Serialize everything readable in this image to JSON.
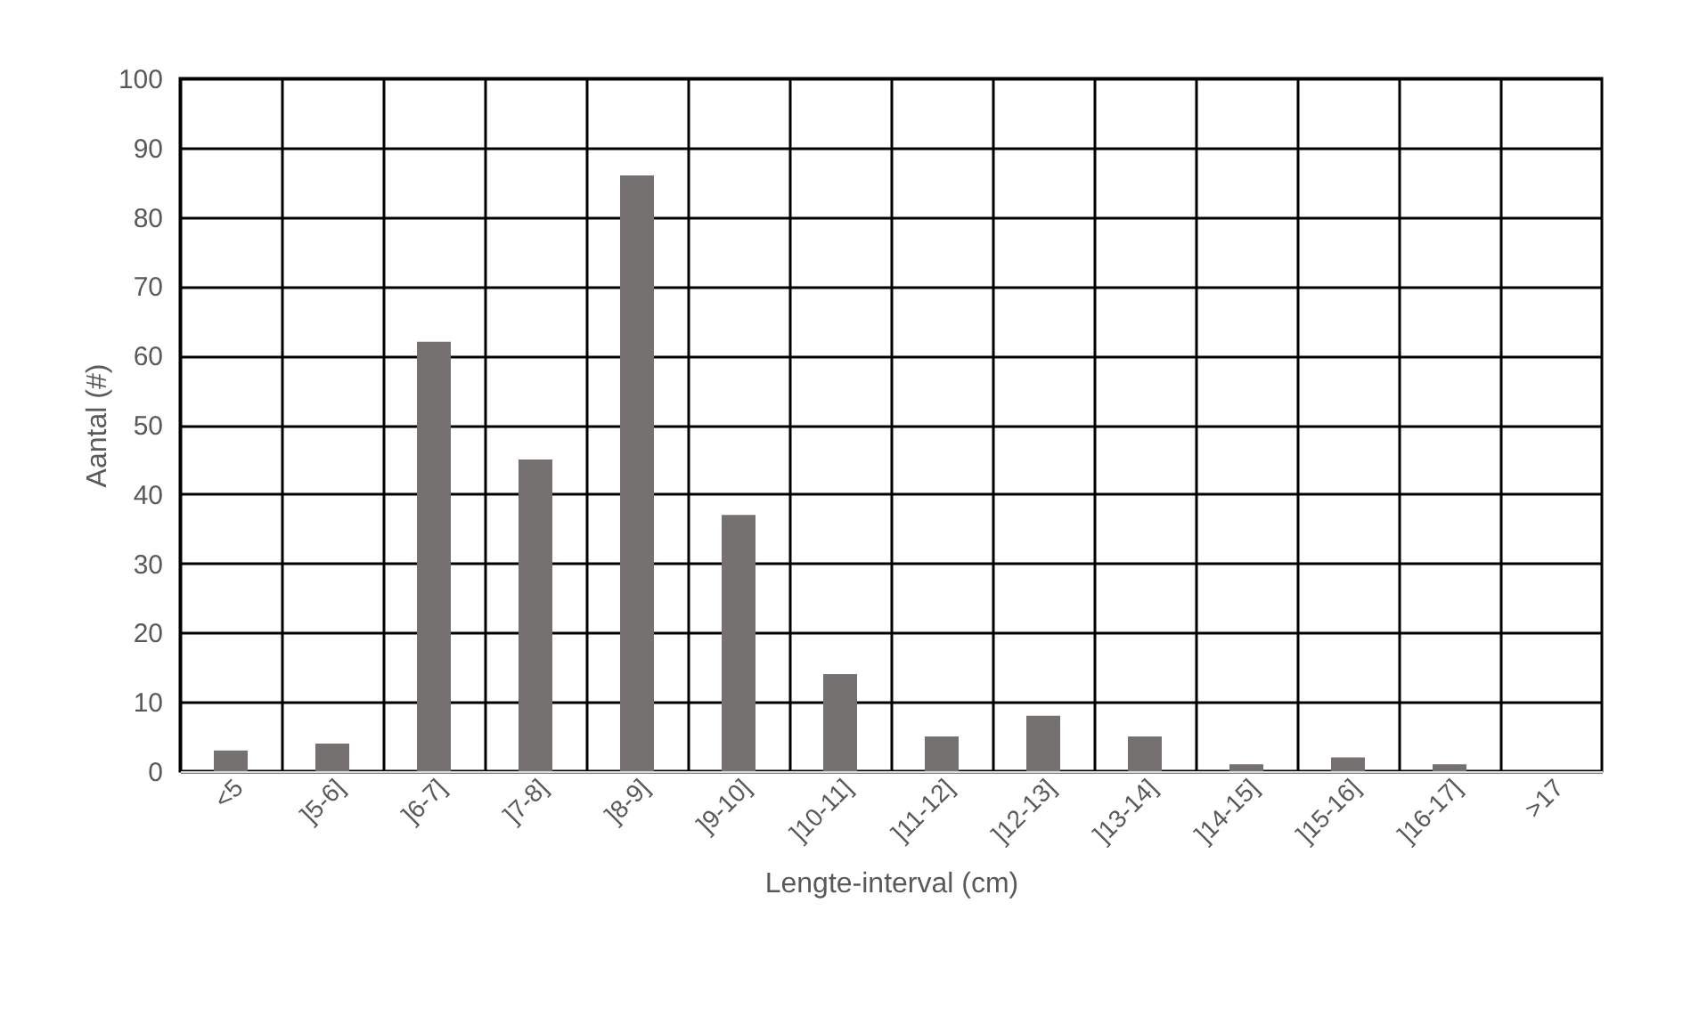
{
  "chart_data": {
    "type": "bar",
    "xlabel": "Lengte-interval (cm)",
    "ylabel": "Aantal (#)",
    "categories": [
      "<5",
      "]5-6]",
      "]6-7]",
      "]7-8]",
      "]8-9]",
      "]9-10]",
      "]10-11]",
      "]11-12]",
      "]12-13]",
      "]13-14]",
      "]14-15]",
      "]15-16]",
      "]16-17]",
      ">17"
    ],
    "values": [
      3,
      4,
      62,
      45,
      86,
      37,
      14,
      5,
      8,
      5,
      1,
      2,
      1,
      0
    ],
    "color": "#767171",
    "ylim": [
      0,
      100
    ],
    "yticks": [
      0,
      10,
      20,
      30,
      40,
      50,
      60,
      70,
      80,
      90,
      100
    ],
    "grid": true
  }
}
